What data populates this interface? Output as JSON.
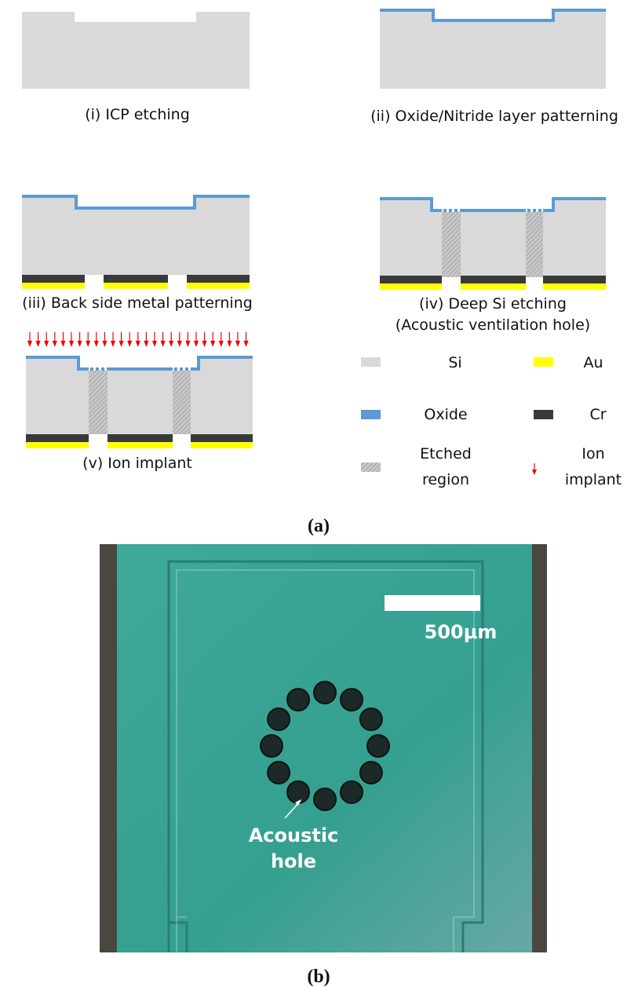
{
  "steps": [
    {
      "lines": [
        "(i) ICP etching"
      ]
    },
    {
      "lines": [
        "(ii) Oxide/Nitride layer patterning"
      ]
    },
    {
      "lines": [
        "(iii) Back side metal patterning"
      ]
    },
    {
      "lines": [
        "(iv) Deep Si etching",
        "(Acoustic ventilation hole)"
      ]
    },
    {
      "lines": [
        "(v) Ion implant"
      ]
    }
  ],
  "legend": [
    {
      "lines": [
        "Si"
      ]
    },
    {
      "lines": [
        "Au"
      ]
    },
    {
      "lines": [
        "Oxide"
      ]
    },
    {
      "lines": [
        "Cr"
      ]
    },
    {
      "lines": [
        "Etched",
        "region"
      ]
    },
    {
      "lines": [
        "Ion",
        "implant"
      ]
    }
  ],
  "panels": {
    "a": "(a)",
    "b": "(b)"
  },
  "micrograph": {
    "scale_bar": "500μm",
    "annotation": [
      "Acoustic",
      "hole"
    ]
  }
}
